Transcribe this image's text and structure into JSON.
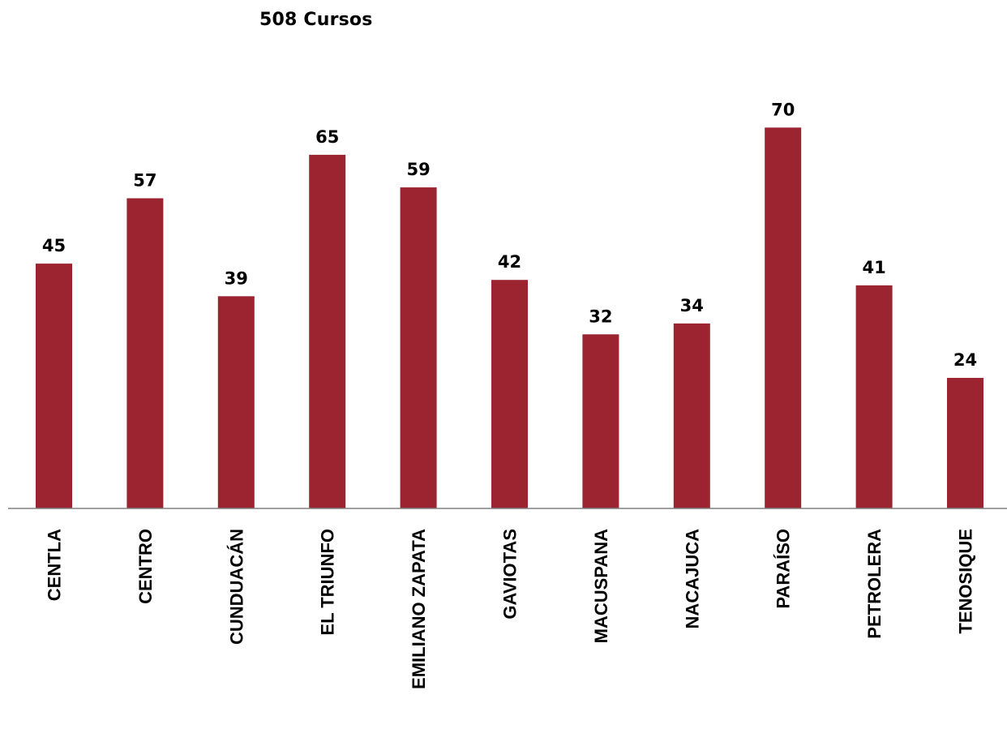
{
  "chart_data": {
    "type": "bar",
    "title": "508 Cursos",
    "xlabel": "",
    "ylabel": "",
    "categories": [
      "CENTLA",
      "CENTRO",
      "CUNDUACÁN",
      "EL TRIUNFO",
      "EMILIANO ZAPATA",
      "GAVIOTAS",
      "MACUSPANA",
      "NACAJUCA",
      "PARAÍSO",
      "PETROLERA",
      "TENOSIQUE"
    ],
    "values": [
      45,
      57,
      39,
      65,
      59,
      42,
      32,
      34,
      70,
      41,
      24
    ],
    "bar_color": "#9B2430",
    "axis_color": "#808080",
    "grid": false,
    "legend": "none",
    "data_labels": true,
    "ylim": [
      0,
      93
    ]
  }
}
